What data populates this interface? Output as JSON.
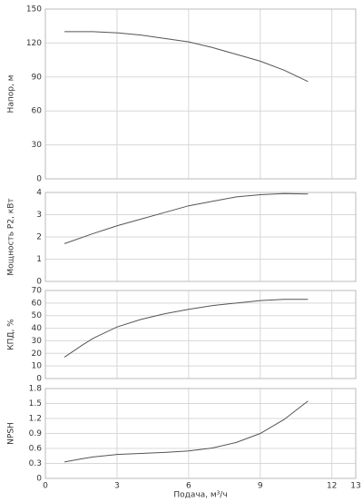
{
  "chart_data": [
    {
      "type": "line",
      "y_label": "Напор, м",
      "x": [
        0.8,
        2,
        3,
        4,
        5,
        6,
        7,
        8,
        9,
        10,
        11
      ],
      "series": [
        {
          "color": "#555555",
          "values": [
            130,
            130,
            129,
            127,
            124,
            121,
            116,
            110,
            104,
            96,
            86
          ]
        }
      ],
      "xlim": [
        0,
        13
      ],
      "xticks": [
        0,
        3,
        6,
        9,
        12,
        13
      ],
      "ylim": [
        0,
        150
      ],
      "yticks": [
        0,
        30,
        60,
        90,
        120,
        150
      ],
      "grid": true
    },
    {
      "type": "line",
      "y_label": "Мощность P2, кВт",
      "x": [
        0.8,
        2,
        3,
        4,
        5,
        6,
        7,
        8,
        9,
        10,
        11
      ],
      "series": [
        {
          "color": "#555555",
          "values": [
            1.7,
            2.15,
            2.5,
            2.8,
            3.1,
            3.4,
            3.6,
            3.8,
            3.9,
            3.95,
            3.93
          ]
        }
      ],
      "xlim": [
        0,
        13
      ],
      "xticks": [
        0,
        3,
        6,
        9,
        12,
        13
      ],
      "ylim": [
        0,
        4
      ],
      "yticks": [
        0,
        1,
        2,
        3,
        4
      ],
      "grid": true
    },
    {
      "type": "line",
      "y_label": "КПД, %",
      "x": [
        0.8,
        1.5,
        2,
        3,
        4,
        5,
        6,
        7,
        8,
        9,
        10,
        11
      ],
      "series": [
        {
          "color": "#555555",
          "values": [
            17,
            26,
            32,
            41,
            47,
            51.5,
            55,
            58,
            60,
            62,
            63,
            63
          ]
        }
      ],
      "xlim": [
        0,
        13
      ],
      "xticks": [
        0,
        3,
        6,
        9,
        12,
        13
      ],
      "ylim": [
        0,
        70
      ],
      "yticks": [
        0,
        10,
        20,
        30,
        40,
        50,
        60,
        70
      ],
      "grid": true
    },
    {
      "type": "line",
      "y_label": "NPSH",
      "x_label": "Подача, м³/ч",
      "x": [
        0.8,
        1.5,
        2,
        3,
        4,
        5,
        6,
        7,
        8,
        9,
        10,
        11
      ],
      "series": [
        {
          "color": "#555555",
          "values": [
            0.33,
            0.39,
            0.43,
            0.48,
            0.5,
            0.52,
            0.55,
            0.61,
            0.72,
            0.9,
            1.18,
            1.55
          ]
        }
      ],
      "xlim": [
        0,
        13
      ],
      "xticks": [
        0,
        3,
        6,
        9,
        12,
        13
      ],
      "ylim": [
        0,
        1.8
      ],
      "yticks": [
        0,
        0.3,
        0.6,
        0.9,
        1.2,
        1.5,
        1.8
      ],
      "grid": true
    }
  ]
}
